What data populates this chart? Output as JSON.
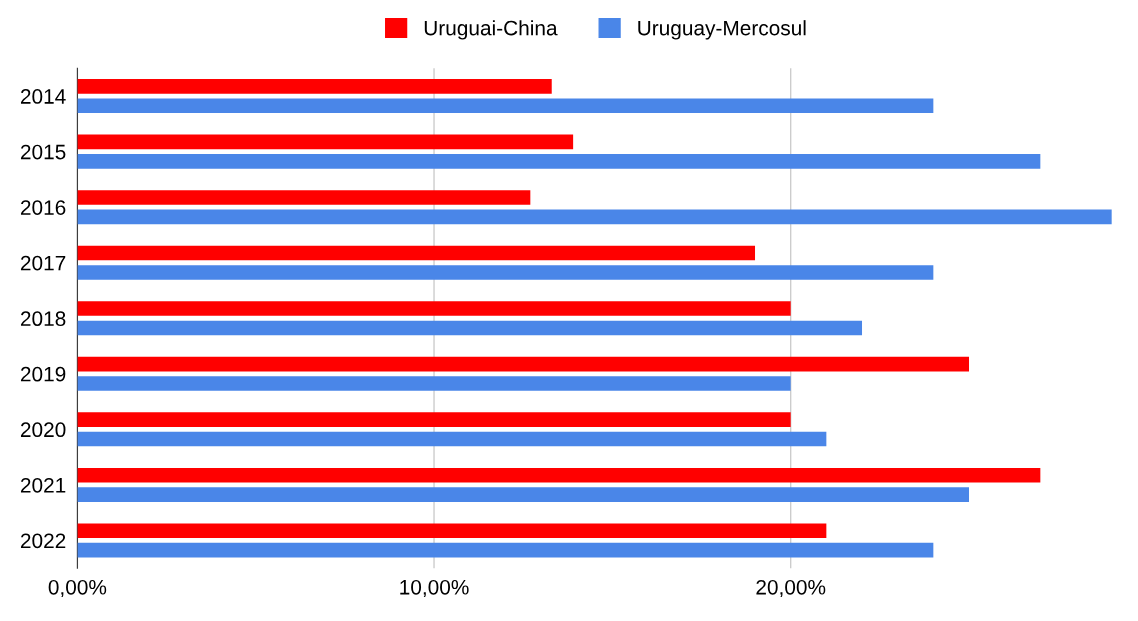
{
  "chart_data": {
    "type": "bar",
    "orientation": "horizontal",
    "categories": [
      "2014",
      "2015",
      "2016",
      "2017",
      "2018",
      "2019",
      "2020",
      "2021",
      "2022"
    ],
    "series": [
      {
        "name": "Uruguai-China",
        "color": "#ff0000",
        "values": [
          13.3,
          13.9,
          12.7,
          19.0,
          20.0,
          25.0,
          20.0,
          27.0,
          21.0
        ]
      },
      {
        "name": "Uruguay-Mercosul",
        "color": "#4a86e8",
        "values": [
          24.0,
          27.0,
          29.0,
          24.0,
          22.0,
          20.0,
          21.0,
          25.0,
          24.0
        ]
      }
    ],
    "xlim": [
      0,
      29.1
    ],
    "xticks": [
      {
        "value": 0,
        "label": "0,00%"
      },
      {
        "value": 10,
        "label": "10,00%"
      },
      {
        "value": 20,
        "label": "20,00%"
      }
    ],
    "grid": "x",
    "legend": "top"
  }
}
